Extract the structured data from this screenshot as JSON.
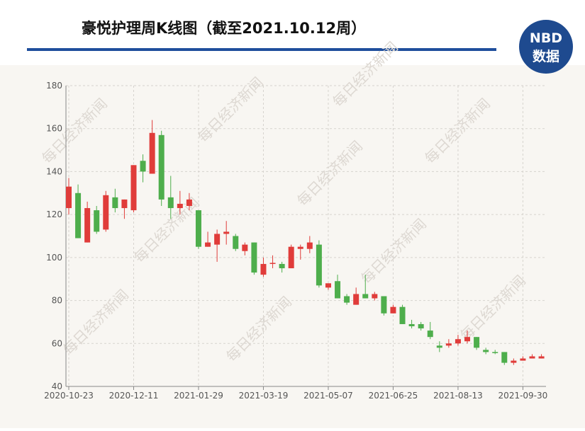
{
  "chart_data": {
    "type": "candlestick",
    "title": "豪悦护理周K线图（截至2021.10.12周）",
    "logo": {
      "line1": "NBD",
      "line2": "数据"
    },
    "watermark": "每日经济新闻",
    "categories": [
      "2020-10-23",
      null,
      null,
      null,
      null,
      null,
      null,
      "2020-12-11",
      null,
      null,
      null,
      null,
      null,
      null,
      "2021-01-29",
      null,
      null,
      null,
      null,
      null,
      null,
      "2021-03-19",
      null,
      null,
      null,
      null,
      null,
      null,
      "2021-05-07",
      null,
      null,
      null,
      null,
      null,
      null,
      "2021-06-25",
      null,
      null,
      null,
      null,
      null,
      null,
      "2021-08-13",
      null,
      null,
      null,
      null,
      null,
      null,
      "2021-09-30",
      null,
      null
    ],
    "open": [
      123,
      130,
      107,
      122,
      113,
      128,
      123,
      122,
      145,
      139,
      157,
      128,
      123,
      124,
      122,
      105,
      106,
      111,
      110,
      103,
      107,
      92,
      97,
      97,
      95,
      104,
      104,
      106,
      86,
      89,
      82,
      78,
      83,
      81,
      82,
      74,
      77,
      69,
      69,
      66,
      59,
      59,
      60,
      61,
      63,
      57,
      56,
      56,
      51,
      52,
      53,
      53
    ],
    "close": [
      133,
      109,
      123,
      112,
      129,
      123,
      127,
      143,
      140,
      158,
      127,
      123,
      125,
      127,
      105,
      107,
      111,
      112,
      104,
      106,
      93,
      97,
      97.5,
      95,
      105,
      105,
      107,
      87,
      88,
      81,
      79,
      83,
      81,
      83,
      74,
      77,
      69,
      68,
      67,
      63,
      58,
      60,
      62,
      63,
      58,
      56,
      55.5,
      51,
      52,
      53,
      54,
      54
    ],
    "high": [
      137,
      134,
      126,
      124,
      131,
      132,
      127,
      143,
      148,
      164,
      159,
      138,
      131,
      130,
      122,
      112,
      113,
      117,
      111,
      107,
      107,
      100,
      101,
      98,
      106,
      106,
      110,
      108,
      88,
      92,
      83,
      86,
      92,
      84,
      82,
      78,
      78,
      71,
      70,
      70,
      61,
      62,
      64,
      66,
      63,
      58,
      57,
      56,
      53,
      54,
      55,
      55
    ],
    "low": [
      120,
      109,
      107,
      111,
      112,
      121,
      118,
      121,
      135,
      139,
      124,
      118,
      120,
      122,
      104,
      105,
      98,
      106,
      103,
      101,
      92,
      91,
      95,
      93,
      95,
      99,
      102,
      86,
      85,
      81,
      78,
      78,
      81,
      80,
      73,
      74,
      69,
      67,
      66,
      62,
      56,
      58,
      59,
      60,
      57,
      55,
      55,
      50,
      50,
      52,
      53,
      53
    ],
    "up_color": "#e03c3a",
    "down_color": "#4eae4c",
    "ylim": [
      40,
      180
    ],
    "yticks": [
      40,
      60,
      80,
      100,
      120,
      140,
      160,
      180
    ],
    "grid": true
  }
}
